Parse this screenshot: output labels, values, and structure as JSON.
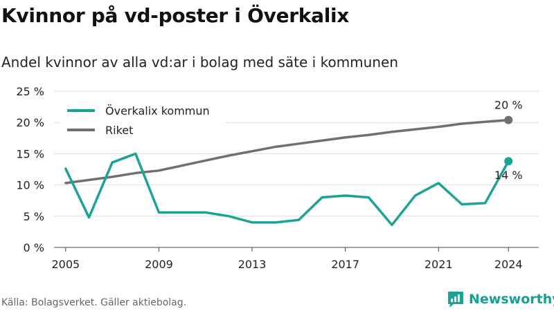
{
  "title": "Kvinnor på vd-poster i Överkalix",
  "subtitle": "Andel kvinnor av alla vd:ar i bolag med säte i kommunen",
  "source": "Källa: Bolagsverket. Gäller aktiebolag.",
  "brand": "Newsworthy",
  "chart_data": {
    "type": "line",
    "title": "Kvinnor på vd-poster i Överkalix",
    "subtitle": "Andel kvinnor av alla vd:ar i bolag med säte i kommunen",
    "x": [
      2005,
      2006,
      2007,
      2008,
      2009,
      2010,
      2011,
      2012,
      2013,
      2014,
      2015,
      2016,
      2017,
      2018,
      2019,
      2020,
      2021,
      2022,
      2023,
      2024
    ],
    "x_ticks": [
      2005,
      2009,
      2013,
      2017,
      2021,
      2024
    ],
    "y_ticks": [
      0,
      5,
      10,
      15,
      20,
      25
    ],
    "y_tick_labels": [
      "0 %",
      "5 %",
      "10 %",
      "15 %",
      "20 %",
      "25 %"
    ],
    "ylim": [
      0,
      25
    ],
    "grid": true,
    "legend_position": "top-left",
    "series": [
      {
        "name": "Överkalix kommun",
        "color": "#1aa396",
        "values": [
          12.6,
          4.8,
          13.6,
          15.0,
          5.6,
          5.6,
          5.6,
          5.0,
          4.0,
          4.0,
          4.4,
          8.0,
          8.3,
          8.0,
          3.6,
          8.3,
          10.3,
          6.9,
          7.1,
          13.8
        ],
        "end_label": "14 %"
      },
      {
        "name": "Riket",
        "color": "#707070",
        "values": [
          10.3,
          10.8,
          11.3,
          11.9,
          12.3,
          13.1,
          13.9,
          14.7,
          15.4,
          16.1,
          16.6,
          17.1,
          17.6,
          18.0,
          18.5,
          18.9,
          19.3,
          19.8,
          20.1,
          20.4
        ],
        "end_label": "20 %"
      }
    ]
  }
}
